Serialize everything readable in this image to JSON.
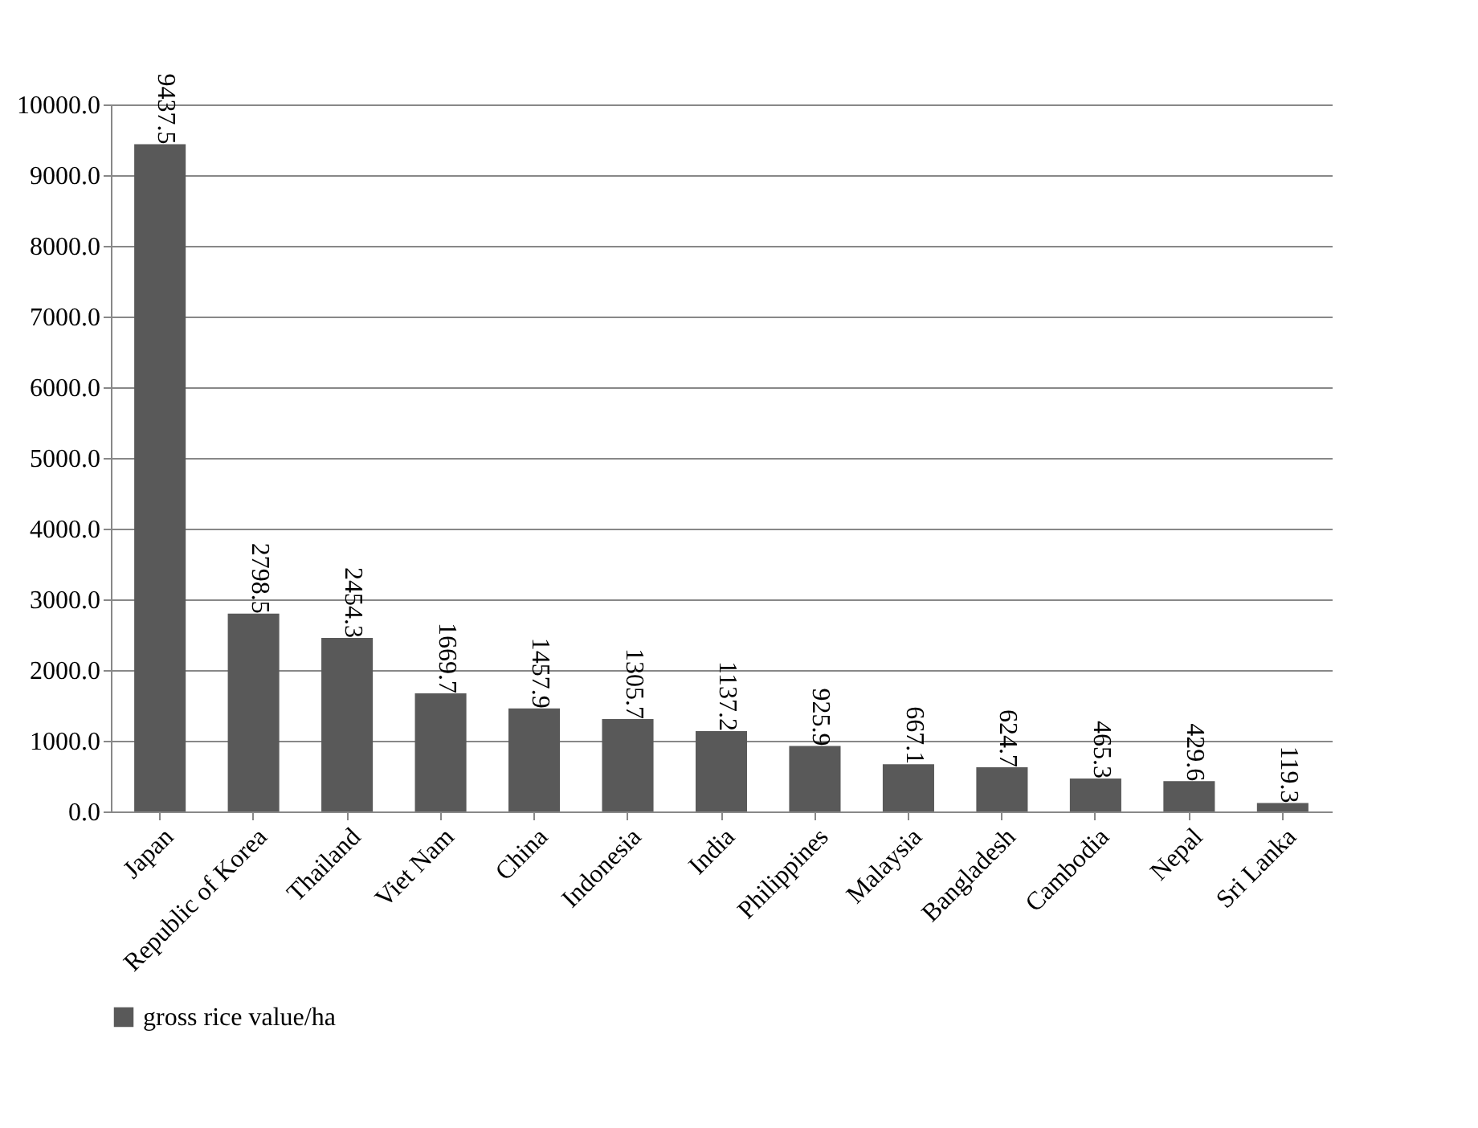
{
  "chart_data": {
    "type": "bar",
    "categories": [
      "Japan",
      "Republic of Korea",
      "Thailand",
      "Viet Nam",
      "China",
      "Indonesia",
      "India",
      "Philippines",
      "Malaysia",
      "Bangladesh",
      "Cambodia",
      "Nepal",
      "Sri Lanka"
    ],
    "series": [
      {
        "name": "gross rice value/ha",
        "color": "#595959",
        "values": [
          9437.5,
          2798.5,
          2454.3,
          1669.7,
          1457.9,
          1305.7,
          1137.2,
          925.9,
          667.1,
          624.7,
          465.3,
          429.6,
          119.3
        ]
      }
    ],
    "ylim": [
      0,
      10000
    ],
    "yticks": [
      {
        "value": 0,
        "label": "0.0"
      },
      {
        "value": 1000,
        "label": "1000.0"
      },
      {
        "value": 2000,
        "label": "2000.0"
      },
      {
        "value": 3000,
        "label": "3000.0"
      },
      {
        "value": 4000,
        "label": "4000.0"
      },
      {
        "value": 5000,
        "label": "5000.0"
      },
      {
        "value": 6000,
        "label": "6000.0"
      },
      {
        "value": 7000,
        "label": "7000.0"
      },
      {
        "value": 8000,
        "label": "8000.0"
      },
      {
        "value": 9000,
        "label": "9000.0"
      },
      {
        "value": 10000,
        "label": "10000.0"
      }
    ],
    "grid": "y",
    "legend": "bottom",
    "data_labels": true
  }
}
